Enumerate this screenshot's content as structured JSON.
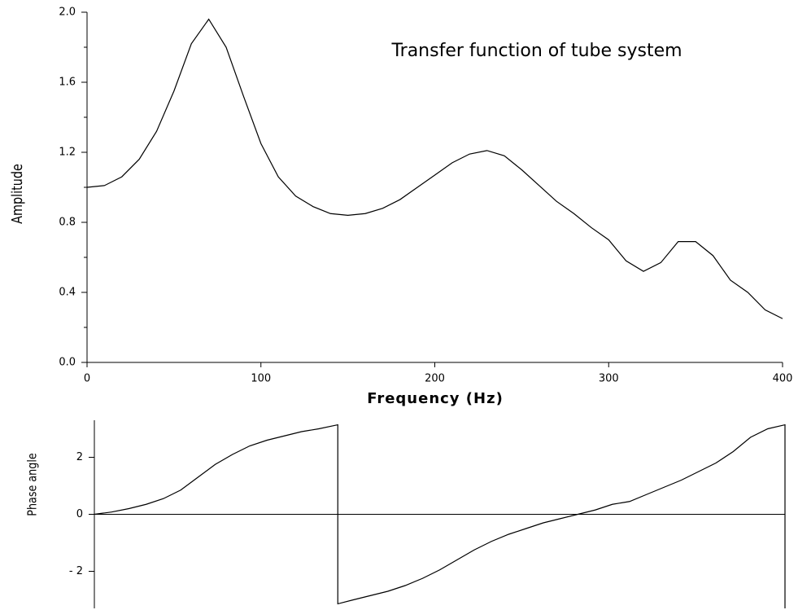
{
  "chart_data": [
    {
      "type": "line",
      "title": "Transfer function of tube system",
      "x_label": "Frequency (Hz)",
      "y_label": "Amplitude",
      "x": [
        0,
        10,
        20,
        30,
        40,
        50,
        60,
        70,
        80,
        90,
        100,
        110,
        120,
        130,
        140,
        150,
        160,
        170,
        180,
        190,
        200,
        210,
        220,
        230,
        240,
        250,
        260,
        270,
        280,
        290,
        300,
        310,
        320,
        330,
        340,
        350,
        360,
        370,
        380,
        390,
        400
      ],
      "series": [
        {
          "name": "Amplitude",
          "color": "#000000",
          "values": [
            1.0,
            1.01,
            1.06,
            1.16,
            1.32,
            1.55,
            1.82,
            1.96,
            1.8,
            1.52,
            1.25,
            1.06,
            0.95,
            0.89,
            0.85,
            0.84,
            0.85,
            0.88,
            0.93,
            1.0,
            1.07,
            1.14,
            1.19,
            1.21,
            1.18,
            1.1,
            1.01,
            0.92,
            0.85,
            0.77,
            0.7,
            0.58,
            0.52,
            0.57,
            0.69,
            0.69,
            0.61,
            0.47,
            0.4,
            0.3,
            0.25
          ]
        }
      ],
      "xlim": [
        0,
        400
      ],
      "xticks": [
        0,
        100,
        200,
        300,
        400
      ],
      "ylim": [
        0,
        2
      ],
      "yticks": [
        {
          "value": 0,
          "label": "0.0"
        },
        0.4,
        0.8,
        1.2,
        1.6,
        {
          "value": 2,
          "label": "2.0"
        }
      ]
    },
    {
      "type": "line",
      "y_label": "Phase angle",
      "x": [
        0,
        10,
        20,
        30,
        40,
        50,
        60,
        70,
        80,
        90,
        100,
        110,
        120,
        130,
        141,
        141,
        150,
        160,
        170,
        180,
        190,
        200,
        210,
        220,
        230,
        240,
        250,
        260,
        270,
        280,
        290,
        300,
        310,
        320,
        330,
        340,
        350,
        360,
        370,
        380,
        390,
        400,
        400
      ],
      "series": [
        {
          "name": "Phase angle",
          "color": "#000000",
          "values": [
            0,
            0.08,
            0.2,
            0.35,
            0.55,
            0.85,
            1.3,
            1.75,
            2.1,
            2.4,
            2.6,
            2.75,
            2.9,
            3.0,
            3.14,
            -3.14,
            -3.0,
            -2.85,
            -2.7,
            -2.5,
            -2.25,
            -1.95,
            -1.6,
            -1.25,
            -0.95,
            -0.7,
            -0.5,
            -0.3,
            -0.15,
            0.0,
            0.15,
            0.35,
            0.45,
            0.7,
            0.95,
            1.2,
            1.5,
            1.8,
            2.2,
            2.7,
            3.0,
            3.14,
            -3.3
          ]
        }
      ],
      "xlim": [
        0,
        400
      ],
      "ylim": [
        -3.3,
        3.3
      ],
      "yticks": [
        {
          "value": -2,
          "label": "- 2"
        },
        0,
        2
      ]
    }
  ]
}
